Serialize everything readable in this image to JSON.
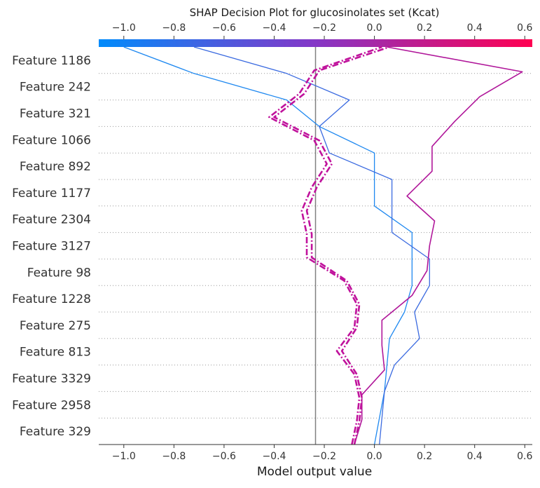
{
  "chart_data": {
    "type": "line",
    "title": "SHAP Decision Plot for glucosinolates set (Kcat)",
    "xlabel": "Model output value",
    "xlim": [
      -1.1,
      0.63
    ],
    "x_ticks": [
      -1.0,
      -0.8,
      -0.6,
      -0.4,
      -0.2,
      0.0,
      0.2,
      0.4,
      0.6
    ],
    "x_tick_labels": [
      "−1.0",
      "−0.8",
      "−0.6",
      "−0.4",
      "−0.2",
      "0.0",
      "0.2",
      "0.4",
      "0.6"
    ],
    "colorbar": {
      "range": [
        -1.1,
        0.63
      ],
      "stops": [
        {
          "value": -1.1,
          "color": "#008bfb"
        },
        {
          "value": -0.25,
          "color": "#8338c8"
        },
        {
          "value": 0.63,
          "color": "#ff0051"
        }
      ]
    },
    "base_value": -0.235,
    "features": [
      "Feature 1186",
      "Feature 242",
      "Feature 321",
      "Feature 1066",
      "Feature 892",
      "Feature 1177",
      "Feature 2304",
      "Feature 3127",
      "Feature 98",
      "Feature 1228",
      "Feature 275",
      "Feature 813",
      "Feature 3329",
      "Feature 2958",
      "Feature 329"
    ],
    "colors": {
      "grid": "#999999",
      "base_line": "#808080"
    },
    "series": [
      {
        "color": "#1e88f0",
        "style": "solid",
        "width": 1.3,
        "x": [
          0.0,
          0.02,
          0.04,
          0.05,
          0.06,
          0.12,
          0.15,
          0.15,
          0.15,
          0.0,
          0.0,
          0.0,
          -0.22,
          -0.35,
          -0.72,
          -1.0
        ]
      },
      {
        "color": "#3a6ae0",
        "style": "solid",
        "width": 1.3,
        "x": [
          0.02,
          0.03,
          0.04,
          0.08,
          0.18,
          0.16,
          0.22,
          0.22,
          0.07,
          0.07,
          0.07,
          -0.18,
          -0.22,
          -0.1,
          -0.35,
          -0.72
        ]
      },
      {
        "color": "#b0179a",
        "style": "solid",
        "width": 1.6,
        "x": [
          -0.08,
          -0.05,
          -0.05,
          0.04,
          0.03,
          0.03,
          0.15,
          0.21,
          0.22,
          0.24,
          0.13,
          0.23,
          0.23,
          0.32,
          0.42,
          0.59,
          0.05
        ]
      },
      {
        "color": "#c0129c",
        "style": "dashdot",
        "width": 2.6,
        "x": [
          -0.09,
          -0.07,
          -0.06,
          -0.08,
          -0.15,
          -0.08,
          -0.07,
          -0.12,
          -0.27,
          -0.27,
          -0.29,
          -0.25,
          -0.19,
          -0.24,
          -0.42,
          -0.3,
          -0.24,
          0.03
        ]
      },
      {
        "color": "#c0129c",
        "style": "dashdot",
        "width": 2.6,
        "x": [
          -0.08,
          -0.06,
          -0.05,
          -0.07,
          -0.13,
          -0.07,
          -0.06,
          -0.11,
          -0.25,
          -0.25,
          -0.27,
          -0.23,
          -0.17,
          -0.22,
          -0.4,
          -0.28,
          -0.22,
          0.06
        ]
      }
    ]
  }
}
